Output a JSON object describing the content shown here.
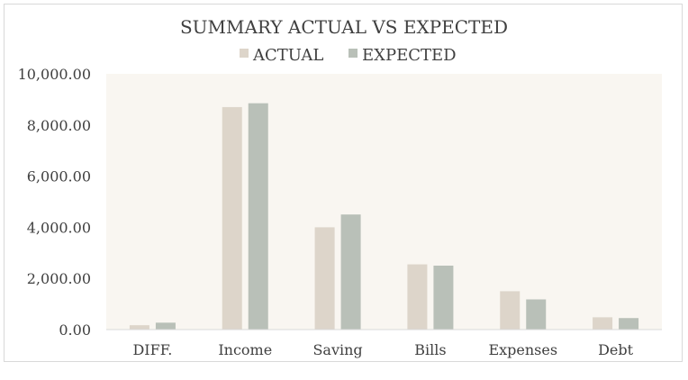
{
  "chart_data": {
    "type": "bar",
    "title": "SUMMARY ACTUAL VS EXPECTED",
    "categories": [
      "DIFF.",
      "Income",
      "Saving",
      "Bills",
      "Expenses",
      "Debt"
    ],
    "series": [
      {
        "name": "ACTUAL",
        "values": [
          170,
          8700,
          4000,
          2550,
          1500,
          480
        ],
        "color": "#ddd5ca"
      },
      {
        "name": "EXPECTED",
        "values": [
          270,
          8850,
          4500,
          2500,
          1180,
          450
        ],
        "color": "#b9c0b8"
      }
    ],
    "xlabel": "",
    "ylabel": "",
    "ylim": [
      0,
      10000
    ],
    "yticks": [
      "0.00",
      "2,000.00",
      "4,000.00",
      "6,000.00",
      "8,000.00",
      "10,000.00"
    ],
    "grid": false,
    "legend": "top",
    "plot_background": "#f9f6f1"
  }
}
